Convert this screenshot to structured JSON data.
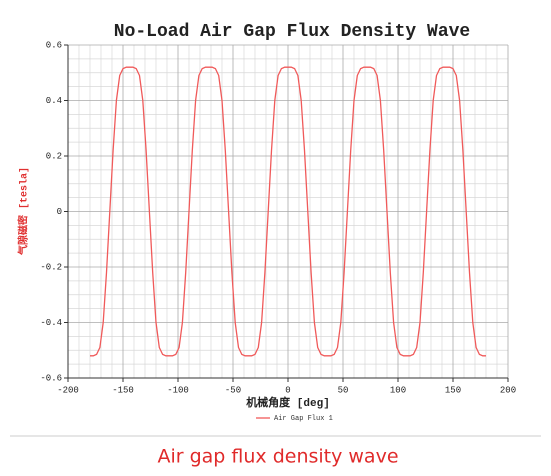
{
  "chart_data": {
    "type": "line",
    "title": "No-Load Air Gap Flux Density Wave",
    "xlabel": "机械角度 [deg]",
    "ylabel": "气隙磁密 [tesla]",
    "x": [
      -180,
      -177,
      -174,
      -171,
      -168,
      -165,
      -162,
      -159,
      -156,
      -153,
      -150,
      -147,
      -144,
      -141,
      -138,
      -135,
      -132,
      -129,
      -126,
      -123,
      -120,
      -117,
      -114,
      -111,
      -108,
      -105,
      -102,
      -99,
      -96,
      -93,
      -90,
      -87,
      -84,
      -81,
      -78,
      -75,
      -72,
      -69,
      -66,
      -63,
      -60,
      -57,
      -54,
      -51,
      -48,
      -45,
      -42,
      -39,
      -36,
      -33,
      -30,
      -27,
      -24,
      -21,
      -18,
      -15,
      -12,
      -9,
      -6,
      -3,
      0,
      3,
      6,
      9,
      12,
      15,
      18,
      21,
      24,
      27,
      30,
      33,
      36,
      39,
      42,
      45,
      48,
      51,
      54,
      57,
      60,
      63,
      66,
      69,
      72,
      75,
      78,
      81,
      84,
      87,
      90,
      93,
      96,
      99,
      102,
      105,
      108,
      111,
      114,
      117,
      120,
      123,
      126,
      129,
      132,
      135,
      138,
      141,
      144,
      147,
      150,
      153,
      156,
      159,
      162,
      165,
      168,
      171,
      174,
      177,
      180
    ],
    "series": [
      {
        "name": "Air Gap Flux 1",
        "color": "#f05a5a",
        "values": [
          -0.52,
          -0.52,
          -0.515,
          -0.49,
          -0.4,
          -0.22,
          0,
          0.22,
          0.4,
          0.49,
          0.515,
          0.52,
          0.52,
          0.52,
          0.515,
          0.49,
          0.4,
          0.22,
          0,
          -0.22,
          -0.4,
          -0.49,
          -0.515,
          -0.52,
          -0.52,
          -0.52,
          -0.515,
          -0.49,
          -0.4,
          -0.22,
          0,
          0.22,
          0.4,
          0.49,
          0.515,
          0.52,
          0.52,
          0.52,
          0.515,
          0.49,
          0.4,
          0.22,
          0,
          -0.22,
          -0.4,
          -0.49,
          -0.515,
          -0.52,
          -0.52,
          -0.52,
          -0.515,
          -0.49,
          -0.4,
          -0.22,
          0,
          0.22,
          0.4,
          0.49,
          0.515,
          0.52,
          0.52,
          0.52,
          0.515,
          0.49,
          0.4,
          0.22,
          0,
          -0.22,
          -0.4,
          -0.49,
          -0.515,
          -0.52,
          -0.52,
          -0.52,
          -0.515,
          -0.49,
          -0.4,
          -0.22,
          0,
          0.22,
          0.4,
          0.49,
          0.515,
          0.52,
          0.52,
          0.52,
          0.515,
          0.49,
          0.4,
          0.22,
          0,
          -0.22,
          -0.4,
          -0.49,
          -0.515,
          -0.52,
          -0.52,
          -0.52,
          -0.515,
          -0.49,
          -0.4,
          -0.22,
          0,
          0.22,
          0.4,
          0.49,
          0.515,
          0.52,
          0.52,
          0.52,
          0.515,
          0.49,
          0.4,
          0.22,
          0,
          -0.22,
          -0.4,
          -0.49,
          -0.515,
          -0.52,
          -0.52
        ]
      }
    ],
    "xlim": [
      -200,
      200
    ],
    "xticks": [
      -200,
      -150,
      -100,
      -50,
      0,
      50,
      100,
      150,
      200
    ],
    "ylim": [
      -0.6,
      0.6
    ],
    "yticks": [
      -0.6,
      -0.4,
      -0.2,
      0,
      0.2,
      0.4,
      0.6
    ],
    "grid": true
  },
  "caption": "Air gap flux density wave"
}
